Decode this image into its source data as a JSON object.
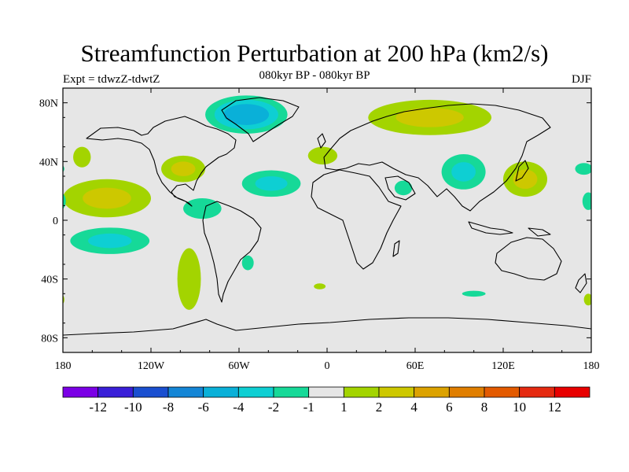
{
  "title": "Streamfunction Perturbation at 200 hPa (km2/s)",
  "subtitle": "080kyr BP - 080kyr BP",
  "experiment": "Expt = tdwzZ-tdwtZ",
  "season": "DJF",
  "map": {
    "projection": "cylindrical equidistant",
    "lon_range": [
      -180,
      180
    ],
    "lat_range": [
      -90,
      90
    ],
    "background_color": "#e6e6e6",
    "coastline_color": "#000000",
    "x_ticks": [
      {
        "lon": -180,
        "label": "180"
      },
      {
        "lon": -120,
        "label": "120W"
      },
      {
        "lon": -60,
        "label": "60W"
      },
      {
        "lon": 0,
        "label": "0"
      },
      {
        "lon": 60,
        "label": "60E"
      },
      {
        "lon": 120,
        "label": "120E"
      },
      {
        "lon": 180,
        "label": "180"
      }
    ],
    "y_ticks": [
      {
        "lat": 80,
        "label": "80N"
      },
      {
        "lat": 40,
        "label": "40N"
      },
      {
        "lat": 0,
        "label": "0"
      },
      {
        "lat": -40,
        "label": "40S"
      },
      {
        "lat": -80,
        "label": "80S"
      }
    ]
  },
  "chart_data": {
    "type": "heatmap",
    "variable": "streamfunction perturbation",
    "levels": [
      -12,
      -10,
      -8,
      -6,
      -4,
      -2,
      -1,
      1,
      2,
      4,
      6,
      8,
      10,
      12
    ],
    "colors": [
      "#7b00e6",
      "#3a1fd8",
      "#1a4fd0",
      "#1486d6",
      "#0ab0d8",
      "#0ecfd3",
      "#16d998",
      "#e6e6e6",
      "#a3d400",
      "#cdc800",
      "#dca200",
      "#e07e00",
      "#e35a00",
      "#e52a10",
      "#e80000"
    ],
    "anomalies": [
      {
        "region": "Greenland / North Atlantic",
        "lon": -55,
        "lat": 72,
        "rlon": 28,
        "rlat": 13,
        "levels": [
          -1,
          -2,
          -4
        ]
      },
      {
        "region": "Eurasia (Siberia)",
        "lon": 70,
        "lat": 70,
        "rlon": 42,
        "rlat": 12,
        "levels": [
          1,
          2
        ]
      },
      {
        "region": "Europe",
        "lon": -3,
        "lat": 44,
        "rlon": 10,
        "rlat": 6,
        "levels": [
          1
        ]
      },
      {
        "region": "Central Asia",
        "lon": 93,
        "lat": 33,
        "rlon": 15,
        "rlat": 12,
        "levels": [
          -1,
          -2
        ]
      },
      {
        "region": "East Asia",
        "lon": 135,
        "lat": 28,
        "rlon": 15,
        "rlat": 12,
        "levels": [
          1,
          2
        ]
      },
      {
        "region": "Western North Pacific",
        "lon": 175,
        "lat": 35,
        "rlon": 6,
        "rlat": 4,
        "levels": [
          -1
        ]
      },
      {
        "region": "NE Pacific",
        "lon": -167,
        "lat": 43,
        "rlon": 6,
        "rlat": 7,
        "levels": [
          1
        ]
      },
      {
        "region": "United States",
        "lon": -98,
        "lat": 35,
        "rlon": 15,
        "rlat": 9,
        "levels": [
          1,
          2
        ]
      },
      {
        "region": "Tropical Atlantic",
        "lon": -38,
        "lat": 25,
        "rlon": 20,
        "rlat": 9,
        "levels": [
          -1,
          -2
        ]
      },
      {
        "region": "Central America",
        "lon": -85,
        "lat": 8,
        "rlon": 13,
        "rlat": 7,
        "levels": [
          -1
        ]
      },
      {
        "region": "Tropical East Pacific",
        "lon": -150,
        "lat": 15,
        "rlon": 30,
        "rlat": 13,
        "levels": [
          1,
          2
        ]
      },
      {
        "region": "South Pacific",
        "lon": -148,
        "lat": -14,
        "rlon": 27,
        "rlat": 9,
        "levels": [
          -1,
          -2
        ]
      },
      {
        "region": "Southeast Pacific",
        "lon": -94,
        "lat": -40,
        "rlon": 8,
        "rlat": 21,
        "levels": [
          1
        ]
      },
      {
        "region": "South America east",
        "lon": -54,
        "lat": -29,
        "rlon": 4,
        "rlat": 5,
        "levels": [
          -1
        ]
      },
      {
        "region": "South Atlantic",
        "lon": -5,
        "lat": -45,
        "rlon": 4,
        "rlat": 2,
        "levels": [
          1
        ]
      },
      {
        "region": "Arabia",
        "lon": 52,
        "lat": 22,
        "rlon": 6,
        "rlat": 5,
        "levels": [
          -1
        ]
      },
      {
        "region": "Southern Indian Ocean",
        "lon": 100,
        "lat": -50,
        "rlon": 8,
        "rlat": 2,
        "levels": [
          -1
        ]
      },
      {
        "region": "Tropical West Pacific",
        "lon": 178,
        "lat": 13,
        "rlon": 4,
        "rlat": 6,
        "levels": [
          -1
        ]
      },
      {
        "region": "Southern Ocean (180)",
        "lon": 178,
        "lat": -54,
        "rlon": 3,
        "rlat": 4,
        "levels": [
          1
        ]
      }
    ]
  },
  "colorbar": {
    "labels": [
      "-12",
      "-10",
      "-8",
      "-6",
      "-4",
      "-2",
      "-1",
      "1",
      "2",
      "4",
      "6",
      "8",
      "10",
      "12"
    ]
  }
}
